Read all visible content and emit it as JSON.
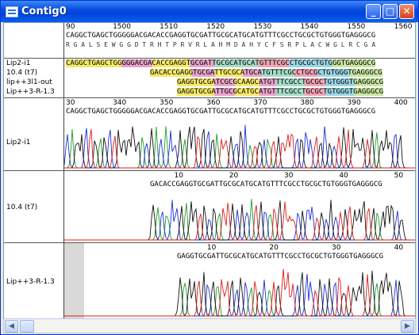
{
  "window": {
    "title": "Contig0",
    "minimize": "_",
    "maximize": "□",
    "close": "✕"
  },
  "rows": [
    {
      "label": "Lip2-i1"
    },
    {
      "label": "10.4 (t7)"
    },
    {
      "label": "lip++3l1-out"
    },
    {
      "label": "Lip++3-R-1.3"
    }
  ],
  "top_ruler": [
    "90",
    "1500",
    "1510",
    "1520",
    "1530",
    "1540",
    "1550",
    "1560"
  ],
  "consensus": "CAGGCTGAGCTGGGGGACGACACCGAGGTGCGATTGCGCATGCATGTTTCGCCTGCGCTGTGGGTGAGGGCG",
  "translation": "R G A L S E W G G D T R H T P R V R L A H M D A H Y C F S R P L A C W G L R C G A",
  "aligned": [
    "CAGGCTGAGCTGGGGGACGACACCGAGGTGCGATTGCGCATGCATGTTTCGCCTGCGCTGTGGGTGAGGGCG",
    "GACACCGAGGTGCGATTGCGCATGCATGTTTCGCCTGCGCTGTGGGTGAGGGCG",
    "GAGGTGCGATCGCGCAAGCATGTTTCGCCTGCGCTGTGGGTGAGGGCG",
    "GAGGTGCGATTGCGCATGCATGTTTCGCCTGCGCTGTGGGTGAGGGCG"
  ],
  "traces": [
    {
      "name": "Lip2-i1",
      "ruler": [
        "30",
        "340",
        "350",
        "360",
        "370",
        "380",
        "390",
        "400"
      ],
      "seq": "CAGGCTGAGCTGGGGGACGACACCGAGGTGCGATTGCGCATGCATGTTTCGCCTGCGCTGTGGGTGAGGGCG"
    },
    {
      "name": "10.4 (t7)",
      "ruler": [
        "10",
        "20",
        "30",
        "40",
        "50"
      ],
      "seq": "GACACCGAGGTGCGATTGCGCATGCATGTTTCGCCTGCGCTGTGGGTGAGGGCG"
    },
    {
      "name": "Lip++3-R-1.3",
      "ruler": [
        "10",
        "20",
        "30",
        "40"
      ],
      "seq": "GAGGTGCGATTGCGCATGCATGTTTCGCCTGCGCTGTGGGTGAGGGCG"
    }
  ],
  "colors": {
    "A": "#1f9e2a",
    "C": "#1d2fd6",
    "G": "#111111",
    "T": "#e01a1a"
  },
  "scrollbar": {
    "left_arrow": "◀",
    "right_arrow": "▶"
  }
}
